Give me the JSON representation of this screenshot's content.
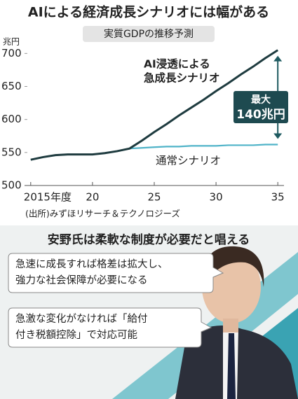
{
  "chart_data": {
    "type": "line",
    "title": "AIによる経済成長シナリオには幅がある",
    "subtitle": "実質GDPの推移予測",
    "y_unit": "兆円",
    "x": [
      2015,
      2016,
      2017,
      2018,
      2019,
      2020,
      2021,
      2022,
      2023,
      2024,
      2025,
      2026,
      2027,
      2028,
      2029,
      2030,
      2031,
      2032,
      2033,
      2034,
      2035
    ],
    "xlim": [
      2014.5,
      2035.5
    ],
    "xticks": [
      {
        "value": 2015,
        "label": "2015年度"
      },
      {
        "value": 2020,
        "label": "20"
      },
      {
        "value": 2025,
        "label": "25"
      },
      {
        "value": 2030,
        "label": "30"
      },
      {
        "value": 2035,
        "label": "35"
      }
    ],
    "ylim": [
      500,
      712
    ],
    "yticks": [
      500,
      550,
      600,
      650,
      700
    ],
    "series": [
      {
        "label": [
          "通常シナリオ"
        ],
        "color": "#4fb3c8",
        "values": [
          539,
          543,
          546,
          547,
          547,
          547,
          549,
          552,
          556,
          557,
          558,
          559,
          559,
          560,
          560,
          560,
          561,
          561,
          561,
          562,
          562
        ]
      },
      {
        "label": [
          "AI浸透による",
          "急成長シナリオ"
        ],
        "color": "#1e3b3f",
        "values": [
          539,
          543,
          546,
          547,
          547,
          547,
          549,
          552,
          556,
          568,
          581,
          593,
          606,
          618,
          630,
          643,
          655,
          668,
          680,
          693,
          705
        ]
      }
    ],
    "annotation": [
      "最大",
      "140兆円"
    ],
    "source": "(出所)みずほリサーチ＆テクノロジーズ"
  },
  "section": {
    "title": "安野氏は柔軟な制度が必要だと唱える",
    "bubbles": [
      [
        "急速に成長すれば格差は拡大し、",
        "強力な社会保障が必要になる"
      ],
      [
        "急激な変化がなければ「給付",
        "付き税額控除」で対応可能"
      ]
    ]
  }
}
